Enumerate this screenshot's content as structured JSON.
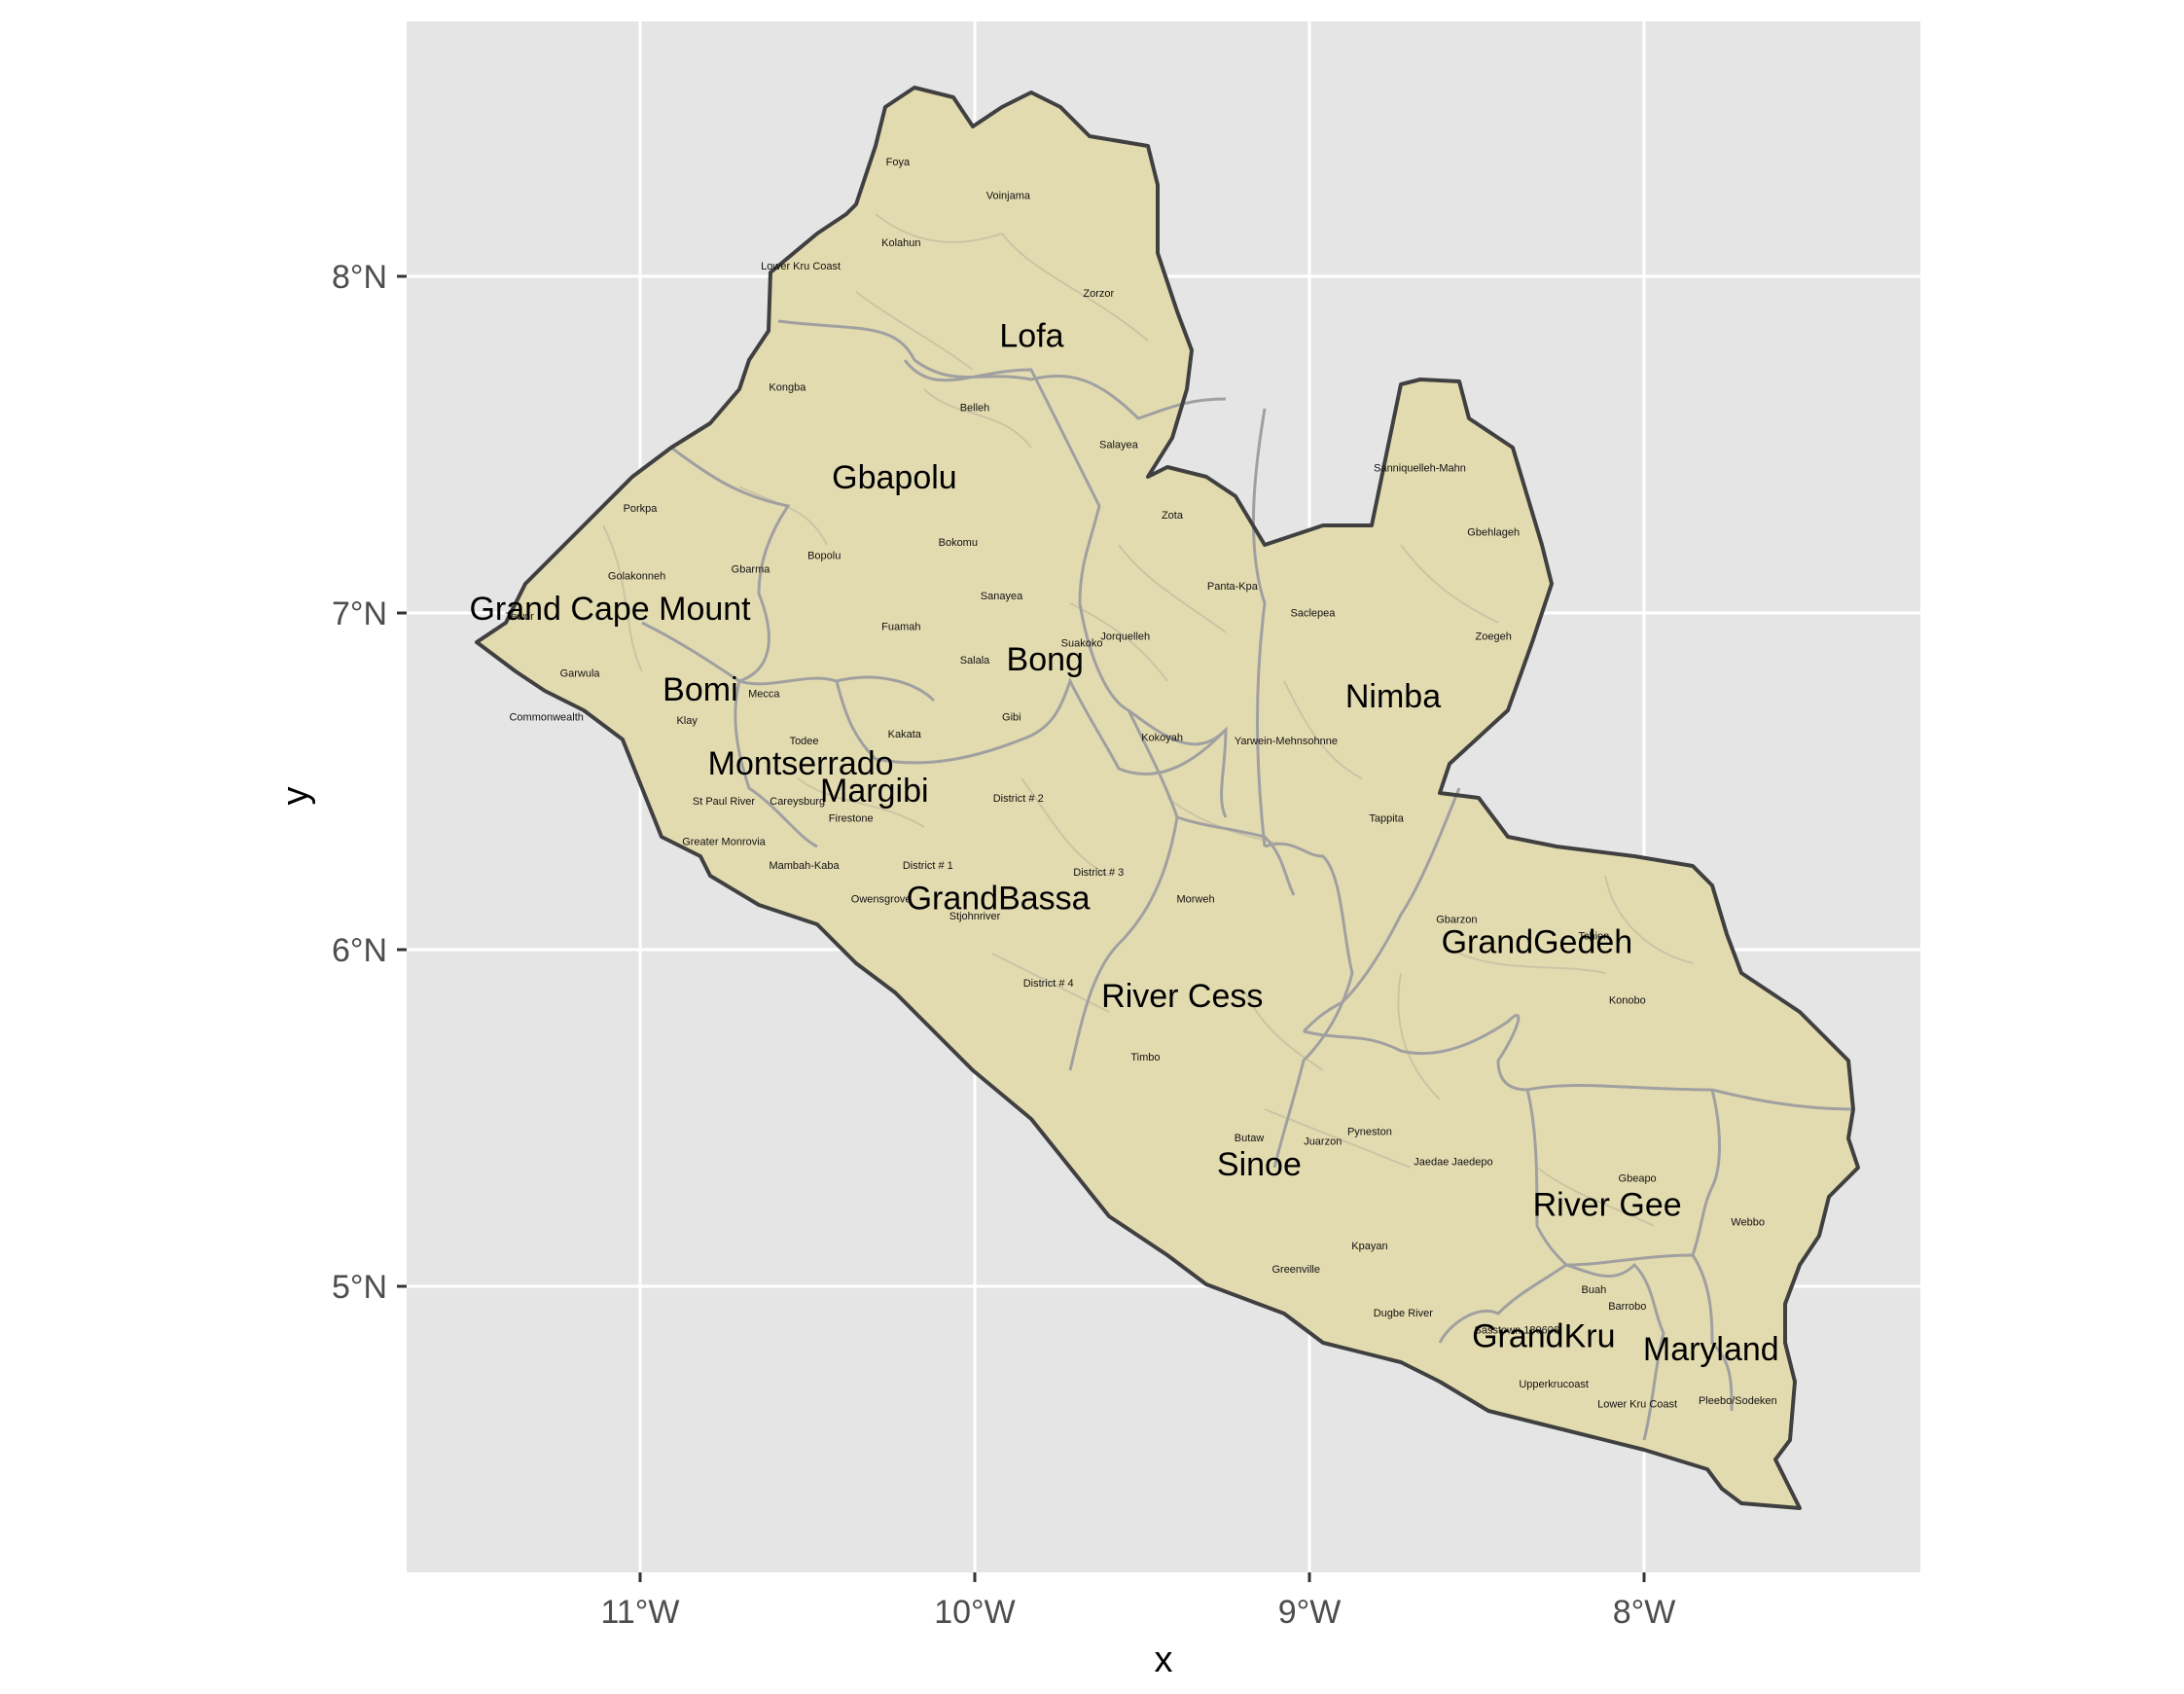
{
  "colors": {
    "panel_bg": "#e5e5e5",
    "grid": "#ffffff",
    "land_fill": "#e3dbb0",
    "country_border": "#404040",
    "county_border": "#a0a0a0",
    "district_border": "#cbc4a4"
  },
  "axes": {
    "x_title": "x",
    "y_title": "y",
    "x_ticks": [
      {
        "value": -11,
        "label": "11°W"
      },
      {
        "value": -10,
        "label": "10°W"
      },
      {
        "value": -9,
        "label": "9°W"
      },
      {
        "value": -8,
        "label": "8°W"
      }
    ],
    "y_ticks": [
      {
        "value": 8,
        "label": "8°N"
      },
      {
        "value": 7,
        "label": "7°N"
      },
      {
        "value": 6,
        "label": "6°N"
      },
      {
        "value": 5,
        "label": "5°N"
      }
    ]
  },
  "chart_data": {
    "type": "map",
    "title": "",
    "xlabel": "x",
    "ylabel": "y",
    "xlim": [
      -11.69,
      -7.18
    ],
    "ylim": [
      4.15,
      8.76
    ],
    "grid": true,
    "counties": [
      {
        "name": "Lofa",
        "lon": -9.83,
        "lat": 7.79
      },
      {
        "name": "Gbapolu",
        "lon": -10.24,
        "lat": 7.37
      },
      {
        "name": "Grand Cape Mount",
        "lon": -11.09,
        "lat": 6.98
      },
      {
        "name": "Bong",
        "lon": -9.79,
        "lat": 6.83
      },
      {
        "name": "Nimba",
        "lon": -8.75,
        "lat": 6.72
      },
      {
        "name": "Bomi",
        "lon": -10.82,
        "lat": 6.74
      },
      {
        "name": "Montserrado",
        "lon": -10.52,
        "lat": 6.52
      },
      {
        "name": "Margibi",
        "lon": -10.3,
        "lat": 6.44
      },
      {
        "name": "GrandBassa",
        "lon": -9.93,
        "lat": 6.12
      },
      {
        "name": "GrandGedeh",
        "lon": -8.32,
        "lat": 5.99
      },
      {
        "name": "River Cess",
        "lon": -9.38,
        "lat": 5.83
      },
      {
        "name": "Sinoe",
        "lon": -9.15,
        "lat": 5.33
      },
      {
        "name": "River Gee",
        "lon": -8.11,
        "lat": 5.21
      },
      {
        "name": "GrandKru",
        "lon": -8.3,
        "lat": 4.82
      },
      {
        "name": "Maryland",
        "lon": -7.8,
        "lat": 4.78
      }
    ],
    "districts": [
      {
        "name": "Foya",
        "lon": -10.23,
        "lat": 8.33
      },
      {
        "name": "Voinjama",
        "lon": -9.9,
        "lat": 8.23
      },
      {
        "name": "Kolahun",
        "lon": -10.22,
        "lat": 8.09
      },
      {
        "name": "Lower Kru Coast",
        "lon": -10.52,
        "lat": 8.02
      },
      {
        "name": "Zorzor",
        "lon": -9.63,
        "lat": 7.94
      },
      {
        "name": "Kongba",
        "lon": -10.56,
        "lat": 7.66
      },
      {
        "name": "Belleh",
        "lon": -10.0,
        "lat": 7.6
      },
      {
        "name": "Salayea",
        "lon": -9.57,
        "lat": 7.49
      },
      {
        "name": "Sanniquelleh-Mahn",
        "lon": -8.67,
        "lat": 7.42
      },
      {
        "name": "Porkpa",
        "lon": -11.0,
        "lat": 7.3
      },
      {
        "name": "Zota",
        "lon": -9.41,
        "lat": 7.28
      },
      {
        "name": "Gbehlageh",
        "lon": -8.45,
        "lat": 7.23
      },
      {
        "name": "Bokomu",
        "lon": -10.05,
        "lat": 7.2
      },
      {
        "name": "Bopolu",
        "lon": -10.45,
        "lat": 7.16
      },
      {
        "name": "Gbarma",
        "lon": -10.67,
        "lat": 7.12
      },
      {
        "name": "Golakonneh",
        "lon": -11.01,
        "lat": 7.1
      },
      {
        "name": "Sanayea",
        "lon": -9.92,
        "lat": 7.04
      },
      {
        "name": "Panta-Kpa",
        "lon": -9.23,
        "lat": 7.07
      },
      {
        "name": "Tewor",
        "lon": -11.36,
        "lat": 6.98
      },
      {
        "name": "Saclepea",
        "lon": -8.99,
        "lat": 6.99
      },
      {
        "name": "Fuamah",
        "lon": -10.22,
        "lat": 6.95
      },
      {
        "name": "Jorquelleh",
        "lon": -9.55,
        "lat": 6.92
      },
      {
        "name": "Zoegeh",
        "lon": -8.45,
        "lat": 6.92
      },
      {
        "name": "Suakoko",
        "lon": -9.68,
        "lat": 6.9
      },
      {
        "name": "Salala",
        "lon": -10.0,
        "lat": 6.85
      },
      {
        "name": "Garwula",
        "lon": -11.18,
        "lat": 6.81
      },
      {
        "name": "Mecca",
        "lon": -10.63,
        "lat": 6.75
      },
      {
        "name": "Commonwealth",
        "lon": -11.28,
        "lat": 6.68
      },
      {
        "name": "Klay",
        "lon": -10.86,
        "lat": 6.67
      },
      {
        "name": "Gibi",
        "lon": -9.89,
        "lat": 6.68
      },
      {
        "name": "Kakata",
        "lon": -10.21,
        "lat": 6.63
      },
      {
        "name": "Todee",
        "lon": -10.51,
        "lat": 6.61
      },
      {
        "name": "Kokoyah",
        "lon": -9.44,
        "lat": 6.62
      },
      {
        "name": "Yarwein-Mehnsohnne",
        "lon": -9.07,
        "lat": 6.61
      },
      {
        "name": "District # 2",
        "lon": -9.87,
        "lat": 6.44
      },
      {
        "name": "St Paul River",
        "lon": -10.75,
        "lat": 6.43
      },
      {
        "name": "Careysburg",
        "lon": -10.53,
        "lat": 6.43
      },
      {
        "name": "Tappita",
        "lon": -8.77,
        "lat": 6.38
      },
      {
        "name": "Firestone",
        "lon": -10.37,
        "lat": 6.38
      },
      {
        "name": "Greater Monrovia",
        "lon": -10.75,
        "lat": 6.31
      },
      {
        "name": "Mambah-Kaba",
        "lon": -10.51,
        "lat": 6.24
      },
      {
        "name": "District # 1",
        "lon": -10.14,
        "lat": 6.24
      },
      {
        "name": "District # 3",
        "lon": -9.63,
        "lat": 6.22
      },
      {
        "name": "Owensgrove",
        "lon": -10.28,
        "lat": 6.14
      },
      {
        "name": "Morweh",
        "lon": -9.34,
        "lat": 6.14
      },
      {
        "name": "Stjohnriver",
        "lon": -10.0,
        "lat": 6.09
      },
      {
        "name": "Gbarzon",
        "lon": -8.56,
        "lat": 6.08
      },
      {
        "name": "Tchien",
        "lon": -8.15,
        "lat": 6.03
      },
      {
        "name": "District # 4",
        "lon": -9.78,
        "lat": 5.89
      },
      {
        "name": "Konobo",
        "lon": -8.05,
        "lat": 5.84
      },
      {
        "name": "Timbo",
        "lon": -9.49,
        "lat": 5.67
      },
      {
        "name": "Butaw",
        "lon": -9.18,
        "lat": 5.43
      },
      {
        "name": "Pyneston",
        "lon": -8.82,
        "lat": 5.45
      },
      {
        "name": "Juarzon",
        "lon": -8.96,
        "lat": 5.42
      },
      {
        "name": "Jaedae Jaedepo",
        "lon": -8.57,
        "lat": 5.36
      },
      {
        "name": "Gbeapo",
        "lon": -8.02,
        "lat": 5.31
      },
      {
        "name": "Webbo",
        "lon": -7.69,
        "lat": 5.18
      },
      {
        "name": "Kpayan",
        "lon": -8.82,
        "lat": 5.11
      },
      {
        "name": "Greenville",
        "lon": -9.04,
        "lat": 5.04
      },
      {
        "name": "Buah",
        "lon": -8.15,
        "lat": 4.98
      },
      {
        "name": "Barrobo",
        "lon": -8.05,
        "lat": 4.93
      },
      {
        "name": "Dugbe River",
        "lon": -8.72,
        "lat": 4.91
      },
      {
        "name": "Sasstown 180606",
        "lon": -8.38,
        "lat": 4.86
      },
      {
        "name": "Upperkrucoast",
        "lon": -8.27,
        "lat": 4.7
      },
      {
        "name": "Lower Kru Coast",
        "lon": -8.02,
        "lat": 4.64
      },
      {
        "name": "Pleebo/Sodeken",
        "lon": -7.72,
        "lat": 4.65
      }
    ]
  }
}
